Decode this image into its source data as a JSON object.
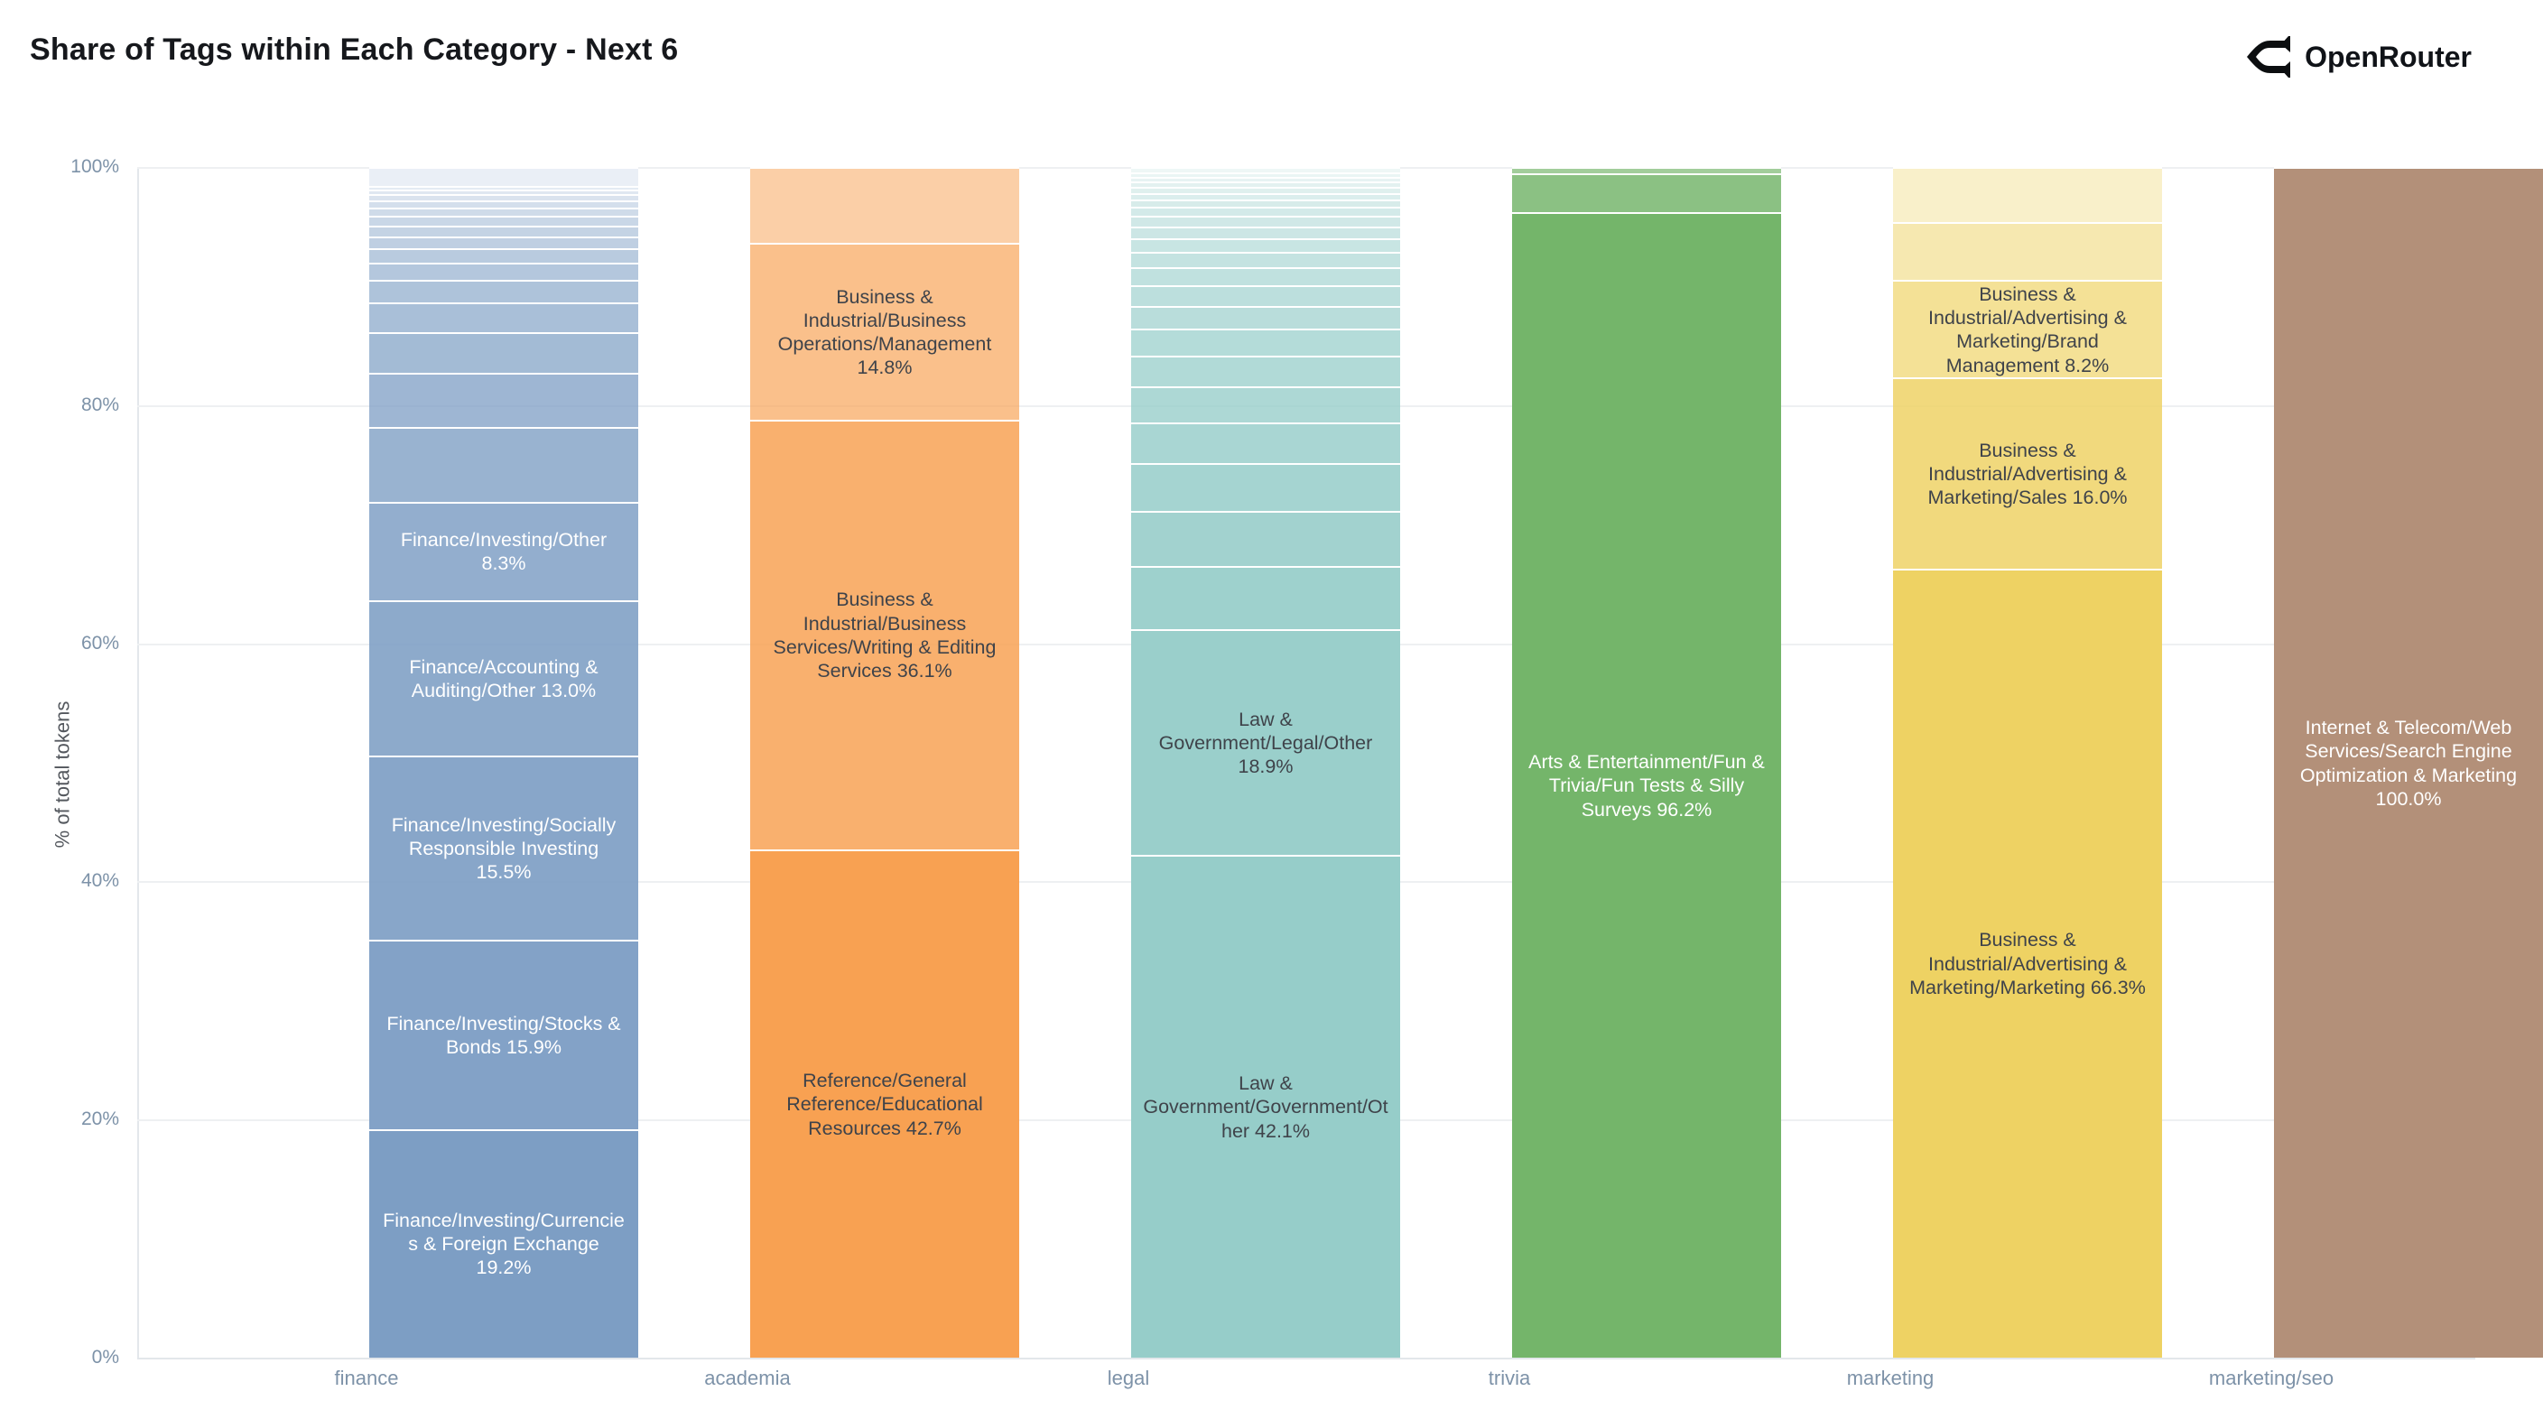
{
  "title": "Share of Tags within Each Category - Next 6",
  "brand": {
    "name": "OpenRouter",
    "icon": "openrouter-chevron-icon"
  },
  "y_axis": {
    "title": "% of total tokens",
    "ticks": [
      "0%",
      "20%",
      "40%",
      "60%",
      "80%",
      "100%"
    ]
  },
  "chart_data": {
    "type": "bar",
    "stacked": true,
    "orientation": "vertical",
    "ylim": [
      0,
      100
    ],
    "grid": "horizontal",
    "legend": "none",
    "categories": [
      "finance",
      "academia",
      "legal",
      "trivia",
      "marketing",
      "marketing/seo"
    ],
    "bars": [
      {
        "category": "finance",
        "base_color": "#7d9ec4",
        "label_tone": "light",
        "segments": [
          {
            "value": 19.2,
            "label": "Finance/Investing/Currencies & Foreign Exchange 19.2%"
          },
          {
            "value": 15.9,
            "label": "Finance/Investing/Stocks & Bonds 15.9%"
          },
          {
            "value": 15.5,
            "label": "Finance/Investing/Socially Responsible Investing 15.5%"
          },
          {
            "value": 13.0,
            "label": "Finance/Accounting & Auditing/Other 13.0%"
          },
          {
            "value": 8.3,
            "label": "Finance/Investing/Other 8.3%"
          },
          {
            "value": 6.3,
            "label": null
          },
          {
            "value": 4.5,
            "label": null
          },
          {
            "value": 3.4,
            "label": null
          },
          {
            "value": 2.5,
            "label": null
          },
          {
            "value": 1.9,
            "label": null
          },
          {
            "value": 1.5,
            "label": null
          },
          {
            "value": 1.2,
            "label": null
          },
          {
            "value": 1.0,
            "label": null
          },
          {
            "value": 0.9,
            "label": null
          },
          {
            "value": 0.8,
            "label": null
          },
          {
            "value": 0.7,
            "label": null
          },
          {
            "value": 0.6,
            "label": null
          },
          {
            "value": 0.5,
            "label": null
          },
          {
            "value": 0.4,
            "label": null
          },
          {
            "value": 0.3,
            "label": null
          },
          {
            "value": 1.6,
            "label": null
          }
        ]
      },
      {
        "category": "academia",
        "base_color": "#f8a152",
        "label_tone": "dark",
        "segments": [
          {
            "value": 42.7,
            "label": "Reference/General Reference/Educational Resources 42.7%"
          },
          {
            "value": 36.1,
            "label": "Business & Industrial/Business Services/Writing & Editing Services 36.1%"
          },
          {
            "value": 14.8,
            "label": "Business & Industrial/Business Operations/Management 14.8%"
          },
          {
            "value": 6.4,
            "label": null
          }
        ]
      },
      {
        "category": "legal",
        "base_color": "#96cdc9",
        "label_tone": "dark",
        "segments": [
          {
            "value": 42.1,
            "label": "Law & Government/Government/Other 42.1%"
          },
          {
            "value": 18.9,
            "label": "Law & Government/Legal/Other 18.9%"
          },
          {
            "value": 5.3,
            "label": null
          },
          {
            "value": 4.6,
            "label": null
          },
          {
            "value": 4.0,
            "label": null
          },
          {
            "value": 3.4,
            "label": null
          },
          {
            "value": 3.0,
            "label": null
          },
          {
            "value": 2.6,
            "label": null
          },
          {
            "value": 2.25,
            "label": null
          },
          {
            "value": 1.95,
            "label": null
          },
          {
            "value": 1.7,
            "label": null
          },
          {
            "value": 1.5,
            "label": null
          },
          {
            "value": 1.3,
            "label": null
          },
          {
            "value": 1.15,
            "label": null
          },
          {
            "value": 1.0,
            "label": null
          },
          {
            "value": 0.85,
            "label": null
          },
          {
            "value": 0.75,
            "label": null
          },
          {
            "value": 0.65,
            "label": null
          },
          {
            "value": 0.55,
            "label": null
          },
          {
            "value": 0.5,
            "label": null
          },
          {
            "value": 0.45,
            "label": null
          },
          {
            "value": 0.4,
            "label": null
          },
          {
            "value": 0.35,
            "label": null
          },
          {
            "value": 0.45,
            "label": null
          }
        ]
      },
      {
        "category": "trivia",
        "base_color": "#74b56a",
        "label_tone": "light",
        "segments": [
          {
            "value": 96.2,
            "label": "Arts & Entertainment/Fun & Trivia/Fun Tests & Silly Surveys 96.2%"
          },
          {
            "value": 3.3,
            "label": null
          },
          {
            "value": 0.5,
            "label": null
          }
        ]
      },
      {
        "category": "marketing",
        "base_color": "#eed263",
        "label_tone": "dark",
        "segments": [
          {
            "value": 66.3,
            "label": "Business & Industrial/Advertising & Marketing/Marketing 66.3%"
          },
          {
            "value": 16.0,
            "label": "Business & Industrial/Advertising & Marketing/Sales 16.0%"
          },
          {
            "value": 8.2,
            "label": "Business & Industrial/Advertising & Marketing/Brand Management 8.2%"
          },
          {
            "value": 4.9,
            "label": null
          },
          {
            "value": 4.6,
            "label": null
          }
        ]
      },
      {
        "category": "marketing/seo",
        "base_color": "#b39079",
        "label_tone": "light",
        "segments": [
          {
            "value": 100.0,
            "label": "Internet & Telecom/Web Services/Search Engine Optimization & Marketing 100.0%"
          }
        ]
      }
    ]
  }
}
